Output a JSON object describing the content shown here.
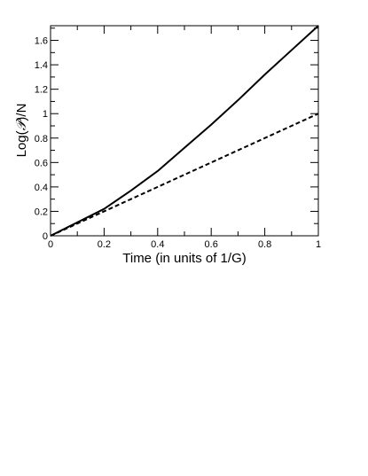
{
  "chart_data": {
    "type": "line",
    "xlabel": "Time (in units of 1/G)",
    "ylabel": {
      "prefix": "Log(",
      "symbol": "𝒫",
      "suffix": ")/N"
    },
    "xlim": [
      0,
      1
    ],
    "ylim": [
      0,
      1.72
    ],
    "x_ticks": [
      0,
      0.2,
      0.4,
      0.6,
      0.8,
      1
    ],
    "y_ticks": [
      0,
      0.2,
      0.4,
      0.6,
      0.8,
      1,
      1.2,
      1.4,
      1.6
    ],
    "x_tick_labels": [
      "0",
      "0.2",
      "0.4",
      "0.6",
      "0.8",
      "1"
    ],
    "y_tick_labels": [
      "0",
      "0.2",
      "0.4",
      "0.6",
      "0.8",
      "1",
      "1.2",
      "1.4",
      "1.6"
    ],
    "grid": false,
    "series": [
      {
        "style": "solid",
        "x": [
          0,
          0.1,
          0.2,
          0.3,
          0.4,
          0.5,
          0.6,
          0.7,
          0.8,
          0.9,
          1.0
        ],
        "y": [
          0,
          0.11,
          0.22,
          0.37,
          0.53,
          0.72,
          0.91,
          1.11,
          1.32,
          1.52,
          1.72
        ]
      },
      {
        "style": "dashed",
        "x": [
          0,
          0.1,
          0.2,
          0.3,
          0.4,
          0.5,
          0.6,
          0.7,
          0.8,
          0.9,
          1.0
        ],
        "y": [
          0,
          0.1,
          0.2,
          0.3,
          0.4,
          0.5,
          0.6,
          0.7,
          0.8,
          0.9,
          1.0
        ]
      }
    ]
  }
}
